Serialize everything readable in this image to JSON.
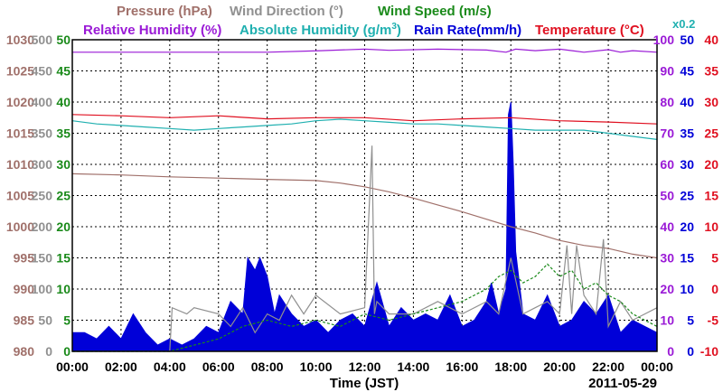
{
  "chart_data": {
    "type": "line",
    "date_label": "2011-05-29",
    "xlabel": "Time (JST)",
    "x_ticks": [
      "00:00",
      "02:00",
      "04:00",
      "06:00",
      "08:00",
      "10:00",
      "12:00",
      "14:00",
      "16:00",
      "18:00",
      "20:00",
      "22:00",
      "00:00"
    ],
    "x_range_hours": [
      0,
      24
    ],
    "grid": true,
    "legend": {
      "row1": [
        {
          "text": "Pressure (hPa)",
          "color": "#a0706a"
        },
        {
          "text": "Wind Direction (°)",
          "color": "#909090"
        },
        {
          "text": "Wind Speed (m/s)",
          "color": "#1a8a1a"
        }
      ],
      "row2": [
        {
          "text": "Relative Humidity (%)",
          "color": "#9a1ad6"
        },
        {
          "text": "Absolute Humidity (g/m",
          "sup": "3",
          "tail": ")",
          "color": "#20b0b0"
        },
        {
          "text": "Rain Rate(mm/h)",
          "color": "#0000d8"
        },
        {
          "text": "Temperature (°C)",
          "color": "#e01020"
        }
      ],
      "note": {
        "text": "x0.2",
        "color": "#20b0b0"
      }
    },
    "axes": {
      "pressure": {
        "ticks": [
          "1030",
          "1025",
          "1020",
          "1015",
          "1010",
          "1005",
          "1000",
          "995",
          "990",
          "985",
          "980"
        ],
        "range": [
          980,
          1030
        ],
        "color": "#a0706a"
      },
      "wind_direction": {
        "ticks": [
          "500",
          "450",
          "400",
          "350",
          "300",
          "250",
          "200",
          "150",
          "100",
          "50",
          "0"
        ],
        "range": [
          0,
          500
        ],
        "color": "#909090"
      },
      "wind_speed": {
        "ticks": [
          "50",
          "45",
          "40",
          "35",
          "30",
          "25",
          "20",
          "15",
          "10",
          "5",
          "0"
        ],
        "range": [
          0,
          50
        ],
        "color": "#1a8a1a"
      },
      "humidity": {
        "ticks": [
          "100",
          "90",
          "80",
          "70",
          "60",
          "50",
          "40",
          "30",
          "20",
          "10",
          "0"
        ],
        "range": [
          0,
          100
        ],
        "color": "#9a1ad6"
      },
      "rain_rate": {
        "ticks": [
          "50",
          "45",
          "40",
          "35",
          "30",
          "25",
          "20",
          "15",
          "10",
          "5",
          "0"
        ],
        "range": [
          0,
          50
        ],
        "color": "#0000d8"
      },
      "temperature": {
        "ticks": [
          "40",
          "35",
          "30",
          "25",
          "20",
          "15",
          "10",
          "5",
          "0",
          "-5",
          "-10"
        ],
        "range": [
          -10,
          40
        ],
        "color": "#e01020"
      }
    },
    "series": [
      {
        "name": "Relative Humidity (%)",
        "axis": "humidity",
        "color": "#9a1ad6",
        "x": [
          0,
          4,
          8,
          10.2,
          12,
          13,
          15,
          17,
          17.8,
          18.2,
          19,
          20,
          21,
          22,
          22.5,
          23,
          24
        ],
        "y": [
          96,
          96,
          96,
          96.5,
          97,
          96.6,
          97,
          96.7,
          96,
          97,
          96.5,
          97,
          96,
          96.8,
          96,
          96.5,
          96
        ]
      },
      {
        "name": "Absolute Humidity (g/m3)",
        "axis": "humidity",
        "color": "#20b0b0",
        "x": [
          0,
          1,
          2,
          3,
          4,
          5,
          6,
          7,
          8,
          9,
          10,
          11,
          12,
          13,
          14,
          15,
          16,
          17,
          18,
          19,
          20,
          21,
          22,
          23,
          24
        ],
        "y": [
          74,
          73,
          72.5,
          72,
          71.5,
          71,
          71.5,
          72,
          72.5,
          73,
          74,
          74.5,
          74,
          73.5,
          73,
          73,
          72.5,
          72,
          71.5,
          71,
          71,
          71,
          70,
          69,
          68
        ]
      },
      {
        "name": "Temperature (°C)",
        "axis": "temperature",
        "color": "#e01020",
        "x": [
          0,
          2,
          4,
          6,
          8,
          10,
          12,
          14,
          16,
          18,
          20,
          22,
          24
        ],
        "y": [
          28,
          27.8,
          27.5,
          27.8,
          27.3,
          27.5,
          27.5,
          27,
          27.3,
          27.5,
          27,
          26.8,
          26.5
        ]
      },
      {
        "name": "Pressure (hPa)",
        "axis": "pressure",
        "color": "#a0706a",
        "x": [
          0,
          2,
          4,
          6,
          8,
          10,
          11,
          12,
          13,
          14,
          15,
          16,
          17,
          18,
          19,
          20,
          21,
          22,
          23,
          24
        ],
        "y": [
          1008.5,
          1008.3,
          1008,
          1007.8,
          1007.6,
          1007.4,
          1007,
          1006.4,
          1005.6,
          1004.6,
          1003.5,
          1002.4,
          1001.2,
          1000,
          999,
          997.8,
          997,
          996.5,
          995.6,
          995
        ]
      },
      {
        "name": "Wind Direction (°)",
        "axis": "wind_direction",
        "color": "#909090",
        "x": [
          0,
          4,
          4.1,
          4.7,
          5,
          6,
          6.5,
          7,
          7.5,
          8,
          8.5,
          9,
          9.5,
          10,
          11,
          12,
          12.3,
          12.4,
          12.5,
          13,
          14,
          15,
          16,
          17,
          17.5,
          18,
          18.5,
          19,
          19.5,
          20,
          20.3,
          20.5,
          20.7,
          21,
          21.5,
          21.8,
          22,
          22.5,
          23,
          23.5,
          24
        ],
        "y": [
          0,
          0,
          70,
          60,
          70,
          60,
          40,
          70,
          30,
          60,
          50,
          90,
          60,
          90,
          60,
          70,
          330,
          60,
          80,
          60,
          60,
          80,
          60,
          80,
          60,
          150,
          60,
          70,
          80,
          60,
          170,
          60,
          170,
          90,
          60,
          180,
          40,
          80,
          50,
          60,
          70
        ]
      },
      {
        "name": "Wind Speed (m/s)",
        "axis": "wind_speed",
        "color": "#1a8a1a",
        "x": [
          0,
          2,
          4,
          5,
          6,
          7,
          8,
          9,
          10,
          11,
          12,
          13,
          14,
          15,
          16,
          17,
          17.5,
          18,
          18.5,
          19,
          19.5,
          20,
          20.5,
          21,
          21.5,
          22,
          22.5,
          23,
          24
        ],
        "y": [
          0,
          0,
          0,
          1,
          2,
          4,
          5,
          4,
          5,
          4,
          6,
          5,
          6,
          7,
          8,
          10,
          12,
          13,
          11,
          12,
          14,
          12,
          13,
          10,
          11,
          9,
          8,
          6,
          4
        ]
      }
    ],
    "rain_rate": {
      "axis": "rain_rate",
      "color": "#0000d8",
      "x": [
        0,
        0.5,
        1,
        1.5,
        2,
        2.5,
        3,
        3.5,
        4,
        4.5,
        5,
        5.5,
        6,
        6.5,
        7,
        7.2,
        7.5,
        7.7,
        8,
        8.3,
        8.5,
        9,
        9.5,
        10,
        10.5,
        11,
        11.5,
        12,
        12.5,
        13,
        13.5,
        14,
        14.5,
        15,
        15.5,
        16,
        16.5,
        17,
        17.2,
        17.5,
        17.8,
        17.9,
        18,
        18.1,
        18.2,
        18.5,
        19,
        19.5,
        20,
        20.5,
        21,
        21.5,
        22,
        22.5,
        23,
        23.5,
        24
      ],
      "y": [
        3,
        3,
        2,
        4,
        2,
        6,
        3,
        1,
        2,
        1,
        2,
        4,
        3,
        8,
        6,
        15,
        13,
        15,
        12,
        6,
        9,
        6,
        4,
        5,
        3,
        5,
        6,
        4,
        11,
        4,
        7,
        5,
        6,
        5,
        9,
        4,
        5,
        8,
        11,
        6,
        10,
        38,
        40,
        30,
        16,
        6,
        5,
        9,
        4,
        5,
        8,
        6,
        9,
        3,
        5,
        4,
        3
      ]
    }
  }
}
